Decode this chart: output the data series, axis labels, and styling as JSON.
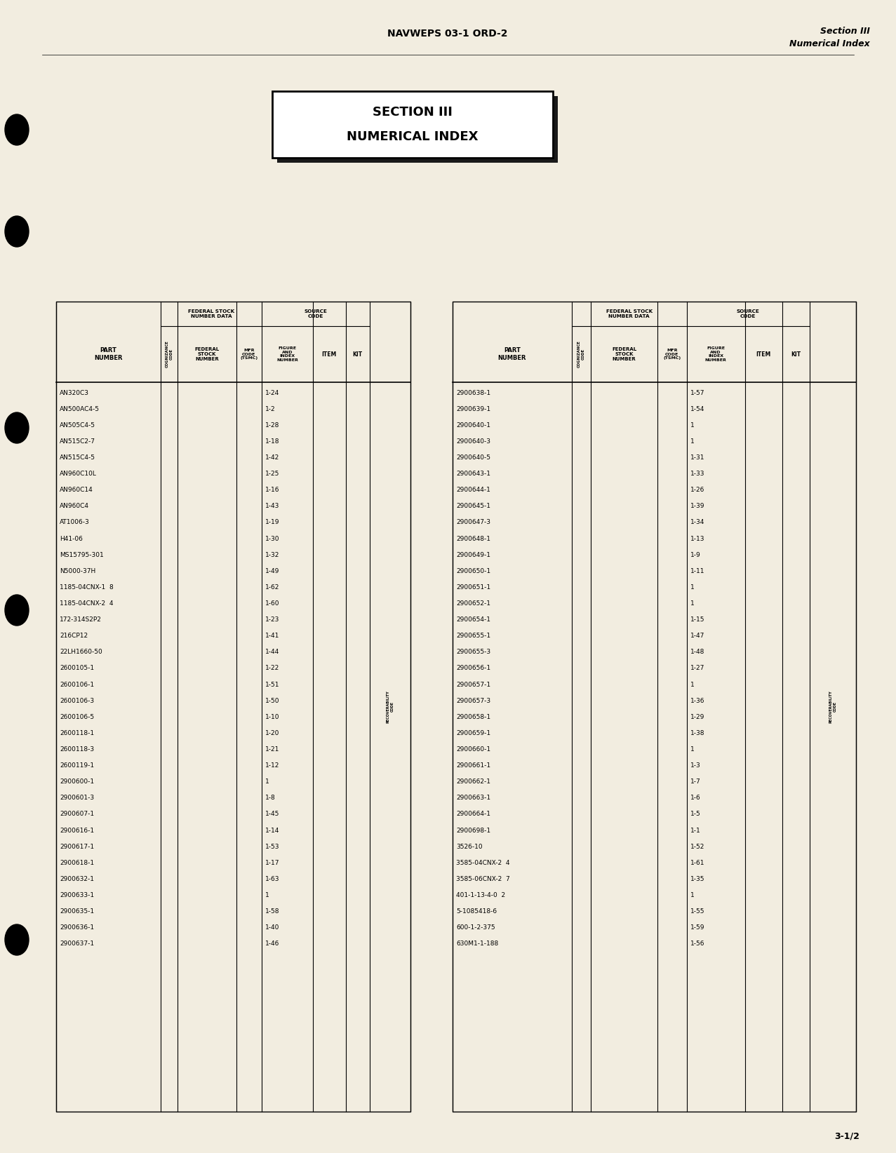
{
  "page_title": "NAVWEPS 03-1 ORD-2",
  "section_title_right1": "Section III",
  "section_title_right2": "Numerical Index",
  "box_title_line1": "SECTION III",
  "box_title_line2": "NUMERICAL INDEX",
  "background_color": "#f2ede0",
  "page_number": "3-1/2",
  "left_parts": [
    [
      "AN320C3",
      "1-24"
    ],
    [
      "AN500AC4-5",
      "1-2"
    ],
    [
      "AN505C4-5",
      "1-28"
    ],
    [
      "AN515C2-7",
      "1-18"
    ],
    [
      "AN515C4-5",
      "1-42"
    ],
    [
      "AN960C10L",
      "1-25"
    ],
    [
      "AN960C14",
      "1-16"
    ],
    [
      "AN960C4",
      "1-43"
    ],
    [
      "AT1006-3",
      "1-19"
    ],
    [
      "H41-06",
      "1-30"
    ],
    [
      "MS15795-301",
      "1-32"
    ],
    [
      "N5000-37H",
      "1-49"
    ],
    [
      "1185-04CNX-1  8",
      "1-62"
    ],
    [
      "1185-04CNX-2  4",
      "1-60"
    ],
    [
      "172-314S2P2",
      "1-23"
    ],
    [
      "216CP12",
      "1-41"
    ],
    [
      "22LH1660-50",
      "1-44"
    ],
    [
      "2600105-1",
      "1-22"
    ],
    [
      "2600106-1",
      "1-51"
    ],
    [
      "2600106-3",
      "1-50"
    ],
    [
      "2600106-5",
      "1-10"
    ],
    [
      "2600118-1",
      "1-20"
    ],
    [
      "2600118-3",
      "1-21"
    ],
    [
      "2600119-1",
      "1-12"
    ],
    [
      "2900600-1",
      "1"
    ],
    [
      "2900601-3",
      "1-8"
    ],
    [
      "2900607-1",
      "1-45"
    ],
    [
      "2900616-1",
      "1-14"
    ],
    [
      "2900617-1",
      "1-53"
    ],
    [
      "2900618-1",
      "1-17"
    ],
    [
      "2900632-1",
      "1-63"
    ],
    [
      "2900633-1",
      "1"
    ],
    [
      "2900635-1",
      "1-58"
    ],
    [
      "2900636-1",
      "1-40"
    ],
    [
      "2900637-1",
      "1-46"
    ]
  ],
  "right_parts": [
    [
      "2900638-1",
      "1-57"
    ],
    [
      "2900639-1",
      "1-54"
    ],
    [
      "2900640-1",
      "1"
    ],
    [
      "2900640-3",
      "1"
    ],
    [
      "2900640-5",
      "1-31"
    ],
    [
      "2900643-1",
      "1-33"
    ],
    [
      "2900644-1",
      "1-26"
    ],
    [
      "2900645-1",
      "1-39"
    ],
    [
      "2900647-3",
      "1-34"
    ],
    [
      "2900648-1",
      "1-13"
    ],
    [
      "2900649-1",
      "1-9"
    ],
    [
      "2900650-1",
      "1-11"
    ],
    [
      "2900651-1",
      "1"
    ],
    [
      "2900652-1",
      "1"
    ],
    [
      "2900654-1",
      "1-15"
    ],
    [
      "2900655-1",
      "1-47"
    ],
    [
      "2900655-3",
      "1-48"
    ],
    [
      "2900656-1",
      "1-27"
    ],
    [
      "2900657-1",
      "1"
    ],
    [
      "2900657-3",
      "1-36"
    ],
    [
      "2900658-1",
      "1-29"
    ],
    [
      "2900659-1",
      "1-38"
    ],
    [
      "2900660-1",
      "1"
    ],
    [
      "2900661-1",
      "1-3"
    ],
    [
      "2900662-1",
      "1-7"
    ],
    [
      "2900663-1",
      "1-6"
    ],
    [
      "2900664-1",
      "1-5"
    ],
    [
      "2900698-1",
      "1-1"
    ],
    [
      "3526-10",
      "1-52"
    ],
    [
      "3585-04CNX-2  4",
      "1-61"
    ],
    [
      "3585-06CNX-2  7",
      "1-35"
    ],
    [
      "401-1-13-4-0  2",
      "1"
    ],
    [
      "5-1085418-6",
      "1-55"
    ],
    [
      "600-1-2-375",
      "1-59"
    ],
    [
      "630M1-1-188",
      "1-56"
    ]
  ]
}
